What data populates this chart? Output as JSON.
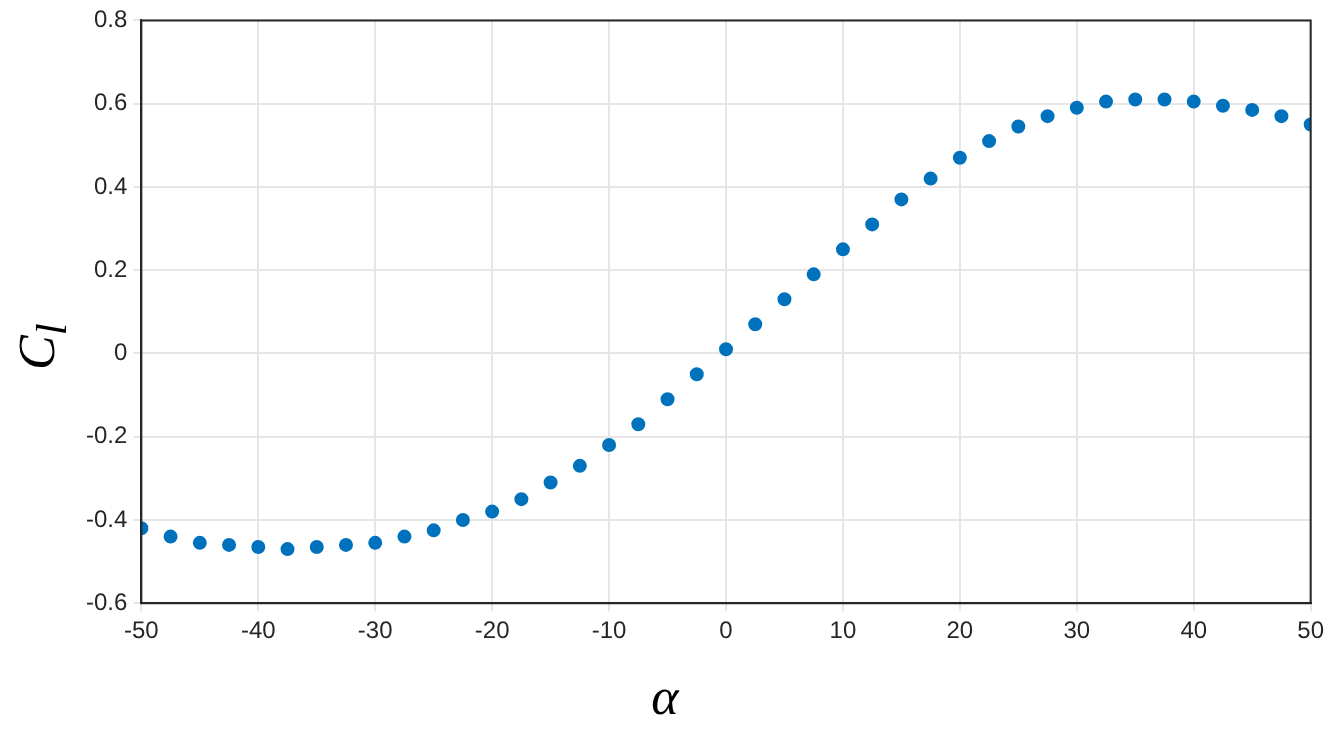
{
  "chart_data": {
    "type": "scatter",
    "xlabel": "α",
    "ylabel": "C$_{l}$",
    "x": [
      -50,
      -47.5,
      -45,
      -42.5,
      -40,
      -37.5,
      -35,
      -32.5,
      -30,
      -27.5,
      -25,
      -22.5,
      -20,
      -17.5,
      -15,
      -12.5,
      -10,
      -7.5,
      -5,
      -2.5,
      0,
      2.5,
      5,
      7.5,
      10,
      12.5,
      15,
      17.5,
      20,
      22.5,
      25,
      27.5,
      30,
      32.5,
      35,
      37.5,
      40,
      42.5,
      45,
      47.5,
      50
    ],
    "series": [
      {
        "color": "#0072bd",
        "values": [
          -0.42,
          -0.44,
          -0.455,
          -0.46,
          -0.465,
          -0.47,
          -0.465,
          -0.46,
          -0.455,
          -0.44,
          -0.425,
          -0.4,
          -0.38,
          -0.35,
          -0.31,
          -0.27,
          -0.22,
          -0.17,
          -0.11,
          -0.05,
          0.01,
          0.07,
          0.13,
          0.19,
          0.25,
          0.31,
          0.37,
          0.42,
          0.47,
          0.51,
          0.545,
          0.57,
          0.59,
          0.605,
          0.61,
          0.61,
          0.605,
          0.595,
          0.585,
          0.57,
          0.55
        ]
      }
    ],
    "xlim": [
      -50,
      50
    ],
    "xticks": [
      -50,
      -40,
      -30,
      -20,
      -10,
      0,
      10,
      20,
      30,
      40,
      50
    ],
    "ylim": [
      -0.6,
      0.8
    ],
    "yticks": [
      -0.6,
      -0.4,
      -0.2,
      0,
      0.2,
      0.4,
      0.6,
      0.8
    ],
    "grid": true,
    "marker": "circle"
  }
}
